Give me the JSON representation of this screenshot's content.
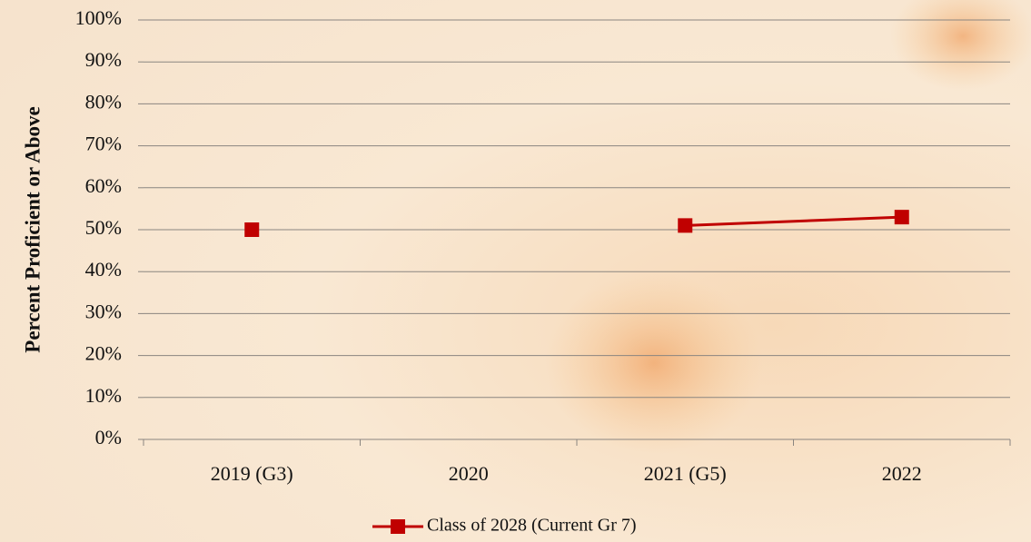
{
  "chart_data": {
    "type": "line",
    "categories": [
      "2019 (G3)",
      "2020",
      "2021 (G5)",
      "2022"
    ],
    "series": [
      {
        "name": "Class of 2028 (Current Gr 7)",
        "color": "#c00000",
        "values": [
          50,
          null,
          51,
          53
        ]
      }
    ],
    "y_axis_label": "Percent Proficient or Above",
    "ylim": [
      0,
      100
    ],
    "yticks": [
      {
        "value": 0,
        "label": "0%"
      },
      {
        "value": 10,
        "label": "10%"
      },
      {
        "value": 20,
        "label": "20%"
      },
      {
        "value": 30,
        "label": "30%"
      },
      {
        "value": 40,
        "label": "40%"
      },
      {
        "value": 50,
        "label": "50%"
      },
      {
        "value": 60,
        "label": "60%"
      },
      {
        "value": 70,
        "label": "70%"
      },
      {
        "value": 80,
        "label": "80%"
      },
      {
        "value": 90,
        "label": "90%"
      },
      {
        "value": 100,
        "label": "100%"
      }
    ],
    "grid": true,
    "legend": "bottom"
  }
}
